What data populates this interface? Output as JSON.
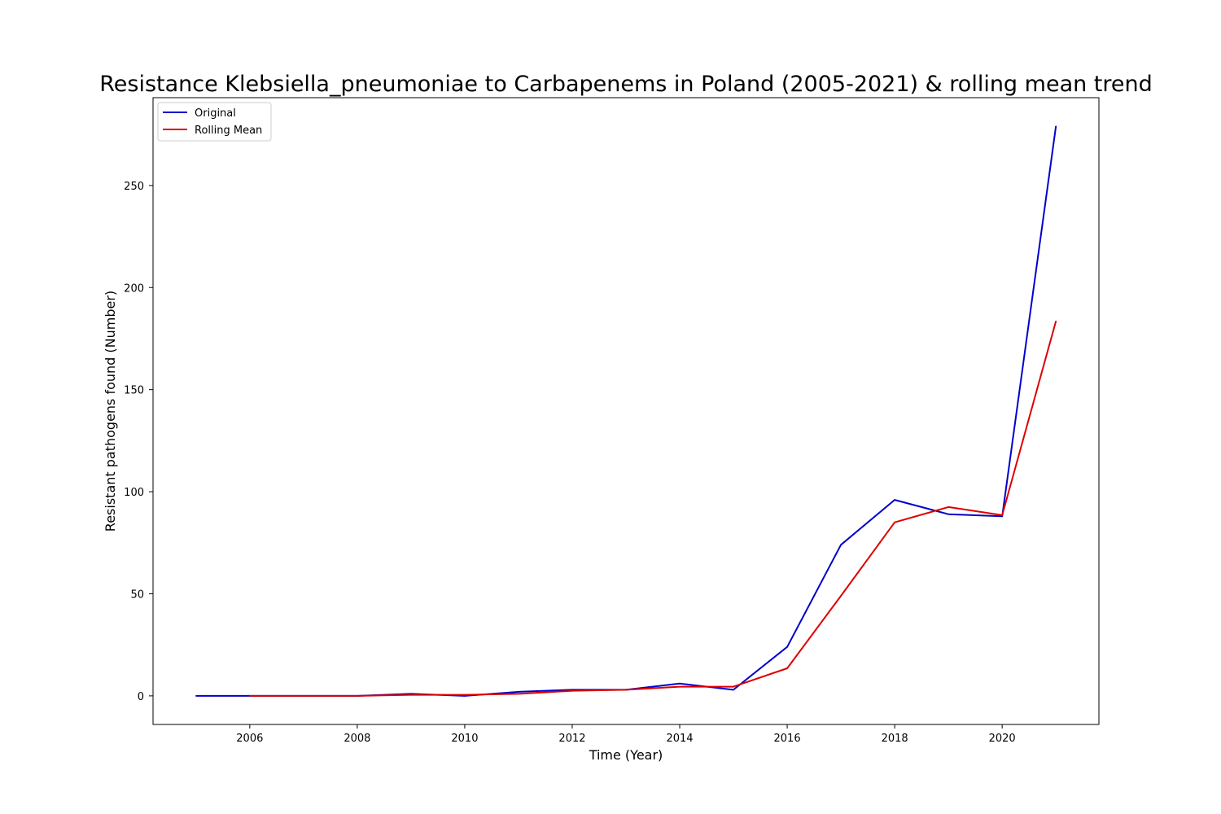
{
  "chart_data": {
    "type": "line",
    "title": "Resistance Klebsiella_pneumoniae to Carbapenems in Poland (2005-2021) & rolling mean trend",
    "xlabel": "Time (Year)",
    "ylabel": "Resistant pathogens found (Number)",
    "xlim": [
      2004.2,
      2021.8
    ],
    "ylim": [
      -14,
      293
    ],
    "x_ticks": [
      2006,
      2008,
      2010,
      2012,
      2014,
      2016,
      2018,
      2020
    ],
    "y_ticks": [
      0,
      50,
      100,
      150,
      200,
      250
    ],
    "grid": false,
    "legend_position": "top-left",
    "series": [
      {
        "name": "Original",
        "color": "#0000cc",
        "x": [
          2005,
          2006,
          2007,
          2008,
          2009,
          2010,
          2011,
          2012,
          2013,
          2014,
          2015,
          2016,
          2017,
          2018,
          2019,
          2020,
          2021
        ],
        "values": [
          0,
          0,
          0,
          0,
          1,
          0,
          2,
          3,
          3,
          6,
          3,
          24,
          74,
          96,
          89,
          88,
          279
        ]
      },
      {
        "name": "Rolling Mean",
        "color": "#dd0000",
        "x": [
          2006,
          2007,
          2008,
          2009,
          2010,
          2011,
          2012,
          2013,
          2014,
          2015,
          2016,
          2017,
          2018,
          2019,
          2020,
          2021
        ],
        "values": [
          0,
          0,
          0,
          0.5,
          0.5,
          1,
          2.5,
          3,
          4.5,
          4.5,
          13.5,
          49,
          85,
          92.5,
          88.5,
          183.5
        ]
      }
    ]
  }
}
